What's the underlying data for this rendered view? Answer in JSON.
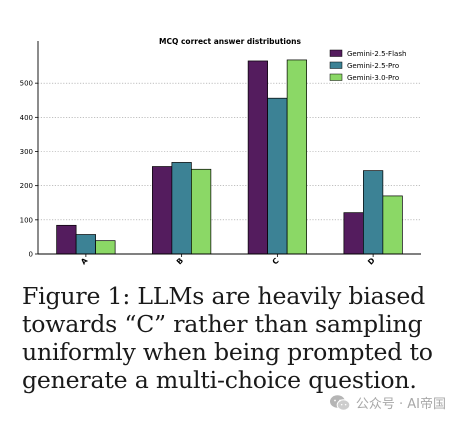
{
  "colors": {
    "gemini_2_5_flash": "#541c5e",
    "gemini_2_5_pro": "#3c8295",
    "gemini_3_0_pro": "#8bd866",
    "grid": "#9a9a9a",
    "axis": "#000000"
  },
  "chart_data": {
    "type": "bar",
    "title": "MCQ correct answer distributions",
    "xlabel": "",
    "ylabel": "",
    "categories": [
      "A",
      "B",
      "C",
      "D"
    ],
    "series": [
      {
        "name": "Gemini-2.5-Flash",
        "color": "#541c5e",
        "values": [
          84,
          256,
          565,
          121
        ]
      },
      {
        "name": "Gemini-2.5-Pro",
        "color": "#3c8295",
        "values": [
          57,
          268,
          456,
          244
        ]
      },
      {
        "name": "Gemini-3.0-Pro",
        "color": "#8bd866",
        "values": [
          39,
          248,
          568,
          170
        ]
      }
    ],
    "ylim": [
      0,
      600
    ],
    "yticks": [
      0,
      100,
      200,
      300,
      400,
      500
    ],
    "grid": "horizontal dotted",
    "legend_position": "top-right"
  },
  "caption": {
    "text": "Figure 1: LLMs are heavily biased towards “C” rather than sampling uniformly when being prompted to generate a multi-choice question."
  },
  "watermark": {
    "icon": "wechat-icon",
    "text": "公众号 · AI帝国"
  }
}
